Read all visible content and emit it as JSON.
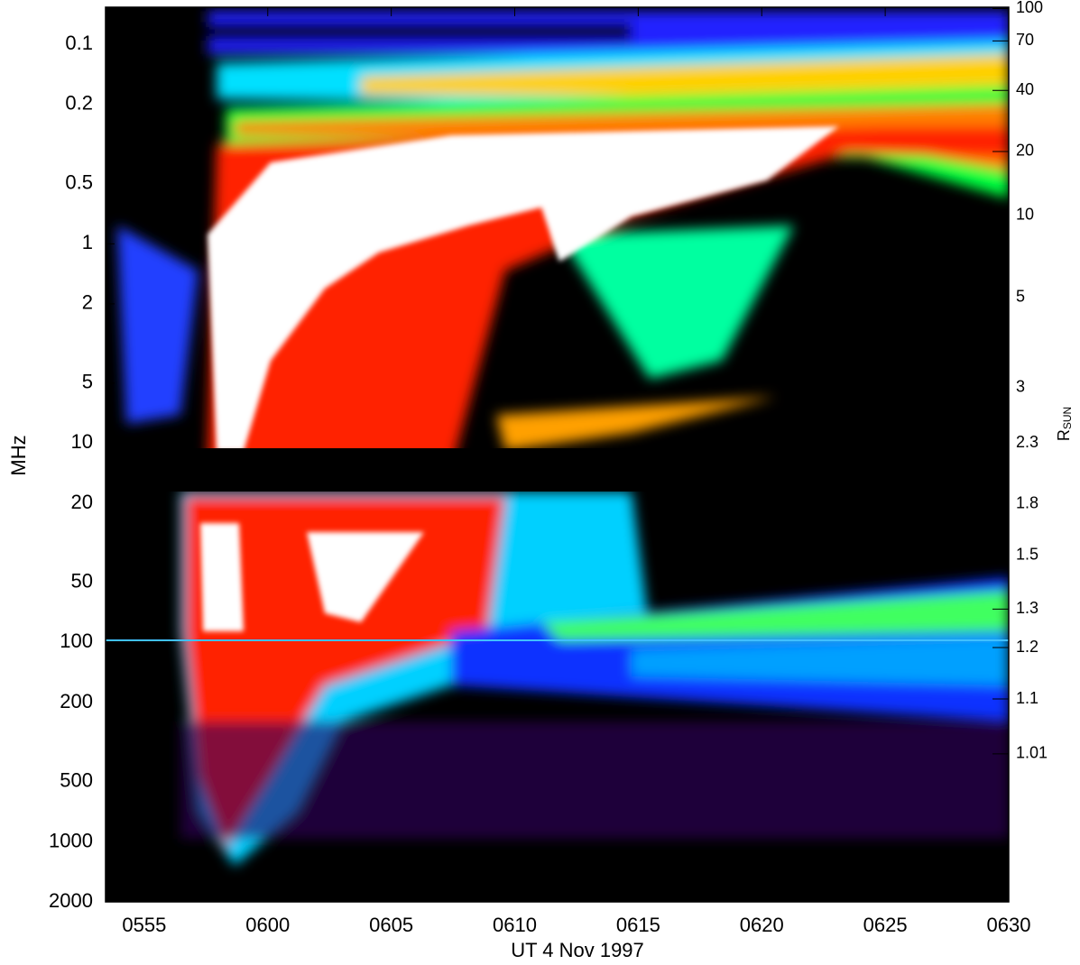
{
  "chart_data": {
    "type": "spectrogram",
    "xlabel": "UT  4 Nov 1997",
    "ylabel": "MHz",
    "ylog": true,
    "yinverted": true,
    "xlim": [
      "1997-11-04T05:53:26",
      "1997-11-04T06:30:00"
    ],
    "xticks": [
      {
        "value": "1997-11-04T05:55",
        "label": "0555"
      },
      {
        "value": "1997-11-04T06:00",
        "label": "0600"
      },
      {
        "value": "1997-11-04T06:05",
        "label": "0605"
      },
      {
        "value": "1997-11-04T06:10",
        "label": "0610"
      },
      {
        "value": "1997-11-04T06:15",
        "label": "0615"
      },
      {
        "value": "1997-11-04T06:20",
        "label": "0620"
      },
      {
        "value": "1997-11-04T06:25",
        "label": "0625"
      },
      {
        "value": "1997-11-04T06:30",
        "label": "0630"
      }
    ],
    "ylim": [
      0.065,
      2000
    ],
    "yticks": [
      0.1,
      0.2,
      0.5,
      1,
      2,
      5,
      10,
      20,
      50,
      100,
      200,
      500,
      1000,
      2000
    ],
    "y2label": "R",
    "y2label_sub": "SUN",
    "y2ticks": [
      100,
      70,
      40,
      20,
      10,
      5,
      3,
      2.3,
      1.8,
      1.5,
      1.3,
      1.2,
      1.1,
      1.01
    ],
    "y2tick_freqs": [
      0.066,
      0.096,
      0.17,
      0.344,
      0.718,
      1.86,
      5.26,
      10,
      20.2,
      36.6,
      68,
      106,
      192,
      362
    ]
  }
}
